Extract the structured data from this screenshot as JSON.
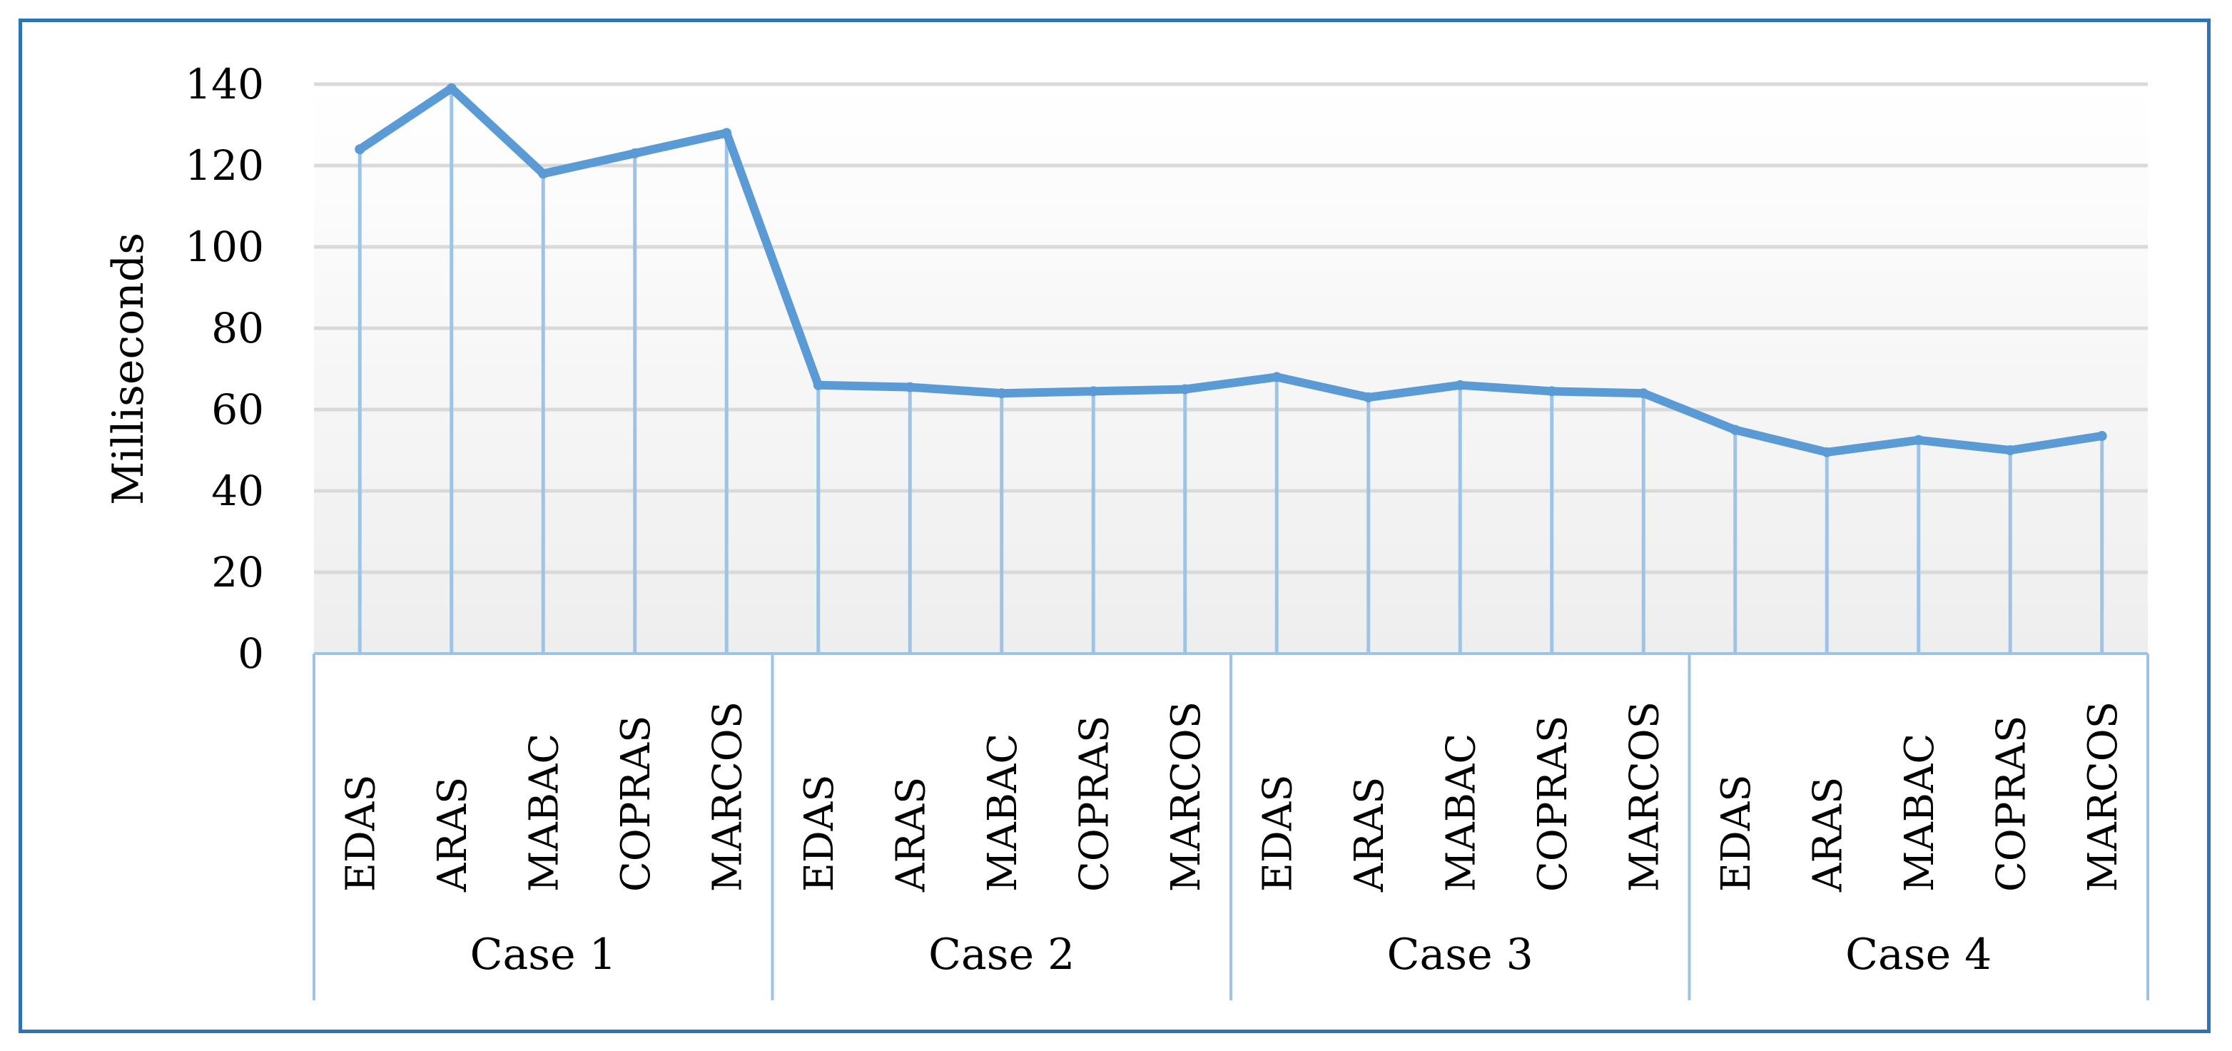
{
  "chart_data": {
    "type": "line",
    "title": "",
    "xlabel": "",
    "ylabel": "Milliseconds",
    "ylim": [
      0,
      140
    ],
    "yticks": [
      0,
      20,
      40,
      60,
      80,
      100,
      120,
      140
    ],
    "grid": true,
    "legend": "none",
    "groups": [
      {
        "label": "Case 1",
        "categories": [
          "EDAS",
          "ARAS",
          "MABAC",
          "COPRAS",
          "MARCOS"
        ]
      },
      {
        "label": "Case 2",
        "categories": [
          "EDAS",
          "ARAS",
          "MABAC",
          "COPRAS",
          "MARCOS"
        ]
      },
      {
        "label": "Case 3",
        "categories": [
          "EDAS",
          "ARAS",
          "MABAC",
          "COPRAS",
          "MARCOS"
        ]
      },
      {
        "label": "Case 4",
        "categories": [
          "EDAS",
          "ARAS",
          "MABAC",
          "COPRAS",
          "MARCOS"
        ]
      }
    ],
    "series": [
      {
        "values": [
          124,
          139,
          118,
          123,
          128,
          66,
          65.5,
          64,
          64.5,
          65,
          68,
          63,
          66,
          64.5,
          64,
          55,
          49.5,
          52.5,
          50,
          53.5
        ],
        "color": "#5b9bd5"
      }
    ],
    "colors": {
      "line": "#5b9bd5",
      "drop_line": "#9dc3e6",
      "grid": "#d9d9d9",
      "axis": "#9dc3e6",
      "frame": "#2e74b5"
    }
  }
}
